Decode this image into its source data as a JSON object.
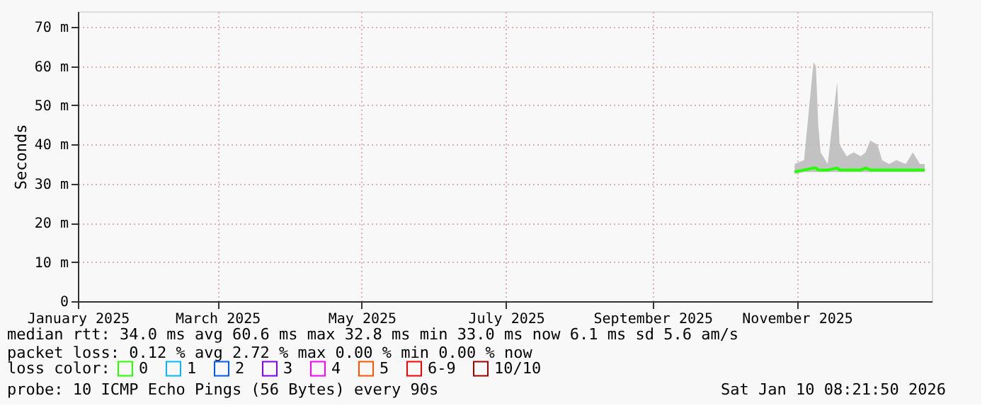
{
  "chart_data": {
    "type": "line",
    "ylabel": "Seconds",
    "legend_title": "loss color:",
    "legend": "bottom",
    "grid": true,
    "xlim": [
      "2025-01-01",
      "2025-12-28"
    ],
    "xticks": [
      {
        "value": "2025-01-01",
        "label": "January 2025"
      },
      {
        "value": "2025-03-01",
        "label": "March 2025"
      },
      {
        "value": "2025-05-01",
        "label": "May 2025"
      },
      {
        "value": "2025-07-01",
        "label": "July 2025"
      },
      {
        "value": "2025-09-01",
        "label": "September 2025"
      },
      {
        "value": "2025-11-01",
        "label": "November 2025"
      }
    ],
    "ylim": [
      0,
      74
    ],
    "yticks": [
      0,
      {
        "value": 10,
        "label": "10 m"
      },
      {
        "value": 20,
        "label": "20 m"
      },
      {
        "value": 30,
        "label": "30 m"
      },
      {
        "value": 40,
        "label": "40 m"
      },
      {
        "value": 50,
        "label": "50 m"
      },
      {
        "value": 60,
        "label": "60 m"
      },
      {
        "value": 70,
        "label": "70 m"
      }
    ],
    "x": [
      "2025-10-31",
      "2025-11-04",
      "2025-11-08",
      "2025-11-09",
      "2025-11-10",
      "2025-11-11",
      "2025-11-14",
      "2025-11-18",
      "2025-11-19",
      "2025-11-22",
      "2025-11-25",
      "2025-11-28",
      "2025-11-30",
      "2025-12-02",
      "2025-12-05",
      "2025-12-07",
      "2025-12-10",
      "2025-12-13",
      "2025-12-17",
      "2025-12-20",
      "2025-12-23",
      "2025-12-25"
    ],
    "series": [
      {
        "name": "0",
        "color": "#26ff00",
        "values": [
          33,
          33.5,
          34,
          34,
          33.5,
          33.5,
          33.5,
          34,
          33.5,
          33.5,
          33.5,
          33.5,
          34,
          33.5,
          33.5,
          33.5,
          33.5,
          33.5,
          33.5,
          33.5,
          33.5,
          33.5
        ],
        "lower": [
          32.5,
          33,
          33,
          33,
          33,
          33,
          33,
          33,
          33,
          33,
          33,
          33,
          33,
          33,
          33,
          33,
          33,
          33,
          33,
          33,
          33,
          33
        ],
        "upper": [
          35,
          36,
          61,
          60,
          45,
          38,
          35,
          56,
          40,
          37,
          38,
          37,
          38,
          41,
          40,
          36,
          35,
          36,
          35,
          38,
          35,
          35
        ]
      },
      {
        "name": "1",
        "color": "#00b8ff",
        "values": [
          null,
          null,
          null,
          null,
          null,
          null,
          null,
          null,
          null,
          null,
          null,
          null,
          null,
          null,
          null,
          null,
          null,
          null,
          null,
          null,
          null,
          null
        ]
      },
      {
        "name": "2",
        "color": "#0059ff",
        "values": [
          null,
          null,
          null,
          null,
          null,
          null,
          null,
          null,
          null,
          null,
          null,
          null,
          null,
          null,
          null,
          null,
          null,
          null,
          null,
          null,
          null,
          null
        ]
      },
      {
        "name": "3",
        "color": "#7e00ff",
        "values": [
          null,
          null,
          null,
          null,
          null,
          null,
          null,
          null,
          null,
          null,
          null,
          null,
          null,
          null,
          null,
          null,
          null,
          null,
          null,
          null,
          null,
          null
        ]
      },
      {
        "name": "4",
        "color": "#ff00ff",
        "values": [
          null,
          null,
          null,
          null,
          null,
          null,
          null,
          null,
          null,
          null,
          null,
          null,
          null,
          null,
          null,
          null,
          null,
          null,
          null,
          null,
          null,
          null
        ]
      },
      {
        "name": "5",
        "color": "#ff5500",
        "values": [
          null,
          null,
          null,
          null,
          null,
          null,
          null,
          null,
          null,
          null,
          null,
          null,
          null,
          null,
          null,
          null,
          null,
          null,
          null,
          null,
          null,
          null
        ]
      },
      {
        "name": "6-9",
        "color": "#ff0000",
        "values": [
          null,
          null,
          null,
          null,
          null,
          null,
          null,
          null,
          null,
          null,
          null,
          null,
          null,
          null,
          null,
          null,
          null,
          null,
          null,
          null,
          null,
          null
        ]
      },
      {
        "name": "10/10",
        "color": "#a10000",
        "values": [
          null,
          null,
          null,
          null,
          null,
          null,
          null,
          null,
          null,
          null,
          null,
          null,
          null,
          null,
          null,
          null,
          null,
          null,
          null,
          null,
          null,
          null
        ]
      }
    ],
    "annotations": [
      "median rtt:  34.0 ms avg  60.6 ms max  32.8 ms min  33.0 ms now  6.1 ms sd  5.6   am/s",
      "packet loss: 0.12 % avg  2.72 % max  0.00 % min  0.00 % now",
      "probe:       10 ICMP Echo Pings (56 Bytes) every 90s",
      "Sat Jan 10 08:21:50 2026"
    ]
  }
}
